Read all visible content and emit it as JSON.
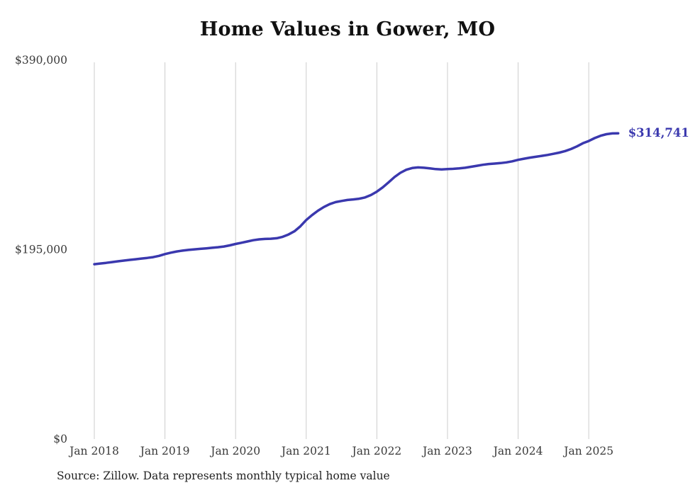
{
  "chart_data": {
    "type": "line",
    "title": "Home Values in Gower, MO",
    "source": "Source: Zillow. Data represents monthly typical home value",
    "series_name": "Monthly typical home value",
    "frequency": "monthly",
    "start_month": "Jan 2018",
    "end_month": "Jun 2025",
    "ylim": [
      0,
      390000
    ],
    "grid": "vertical-only",
    "legend": "none",
    "line_color": "#3a38ae",
    "grid_color": "#cccccc",
    "end_label": "$314,741",
    "final_value": 314741,
    "y_ticks": [
      {
        "value": 0,
        "label": "$0"
      },
      {
        "value": 195000,
        "label": "$195,000"
      },
      {
        "value": 390000,
        "label": "$390,000"
      }
    ],
    "x_tick_labels": [
      "Jan 2018",
      "Jan 2019",
      "Jan 2020",
      "Jan 2021",
      "Jan 2022",
      "Jan 2023",
      "Jan 2024",
      "Jan 2025"
    ],
    "x_tick_indices": [
      0,
      12,
      24,
      36,
      48,
      60,
      72,
      84
    ],
    "values": [
      180000,
      180700,
      181400,
      182200,
      183000,
      183700,
      184400,
      185100,
      185800,
      186500,
      187300,
      188600,
      190400,
      191900,
      193100,
      194000,
      194700,
      195300,
      195800,
      196300,
      196900,
      197500,
      198200,
      199400,
      200800,
      202100,
      203400,
      204700,
      205600,
      206000,
      206200,
      206700,
      208200,
      210600,
      213900,
      219000,
      225500,
      230600,
      235100,
      238900,
      241900,
      243900,
      245100,
      246100,
      246700,
      247400,
      248700,
      251200,
      254700,
      259100,
      264300,
      269700,
      274100,
      277200,
      279000,
      279600,
      279300,
      278600,
      277900,
      277600,
      277900,
      278200,
      278600,
      279300,
      280300,
      281300,
      282300,
      283100,
      283600,
      284100,
      284800,
      285900,
      287400,
      288600,
      289700,
      290600,
      291500,
      292500,
      293600,
      294900,
      296500,
      298600,
      301300,
      304500,
      306800,
      309800,
      312200,
      313800,
      314600,
      314741
    ]
  }
}
